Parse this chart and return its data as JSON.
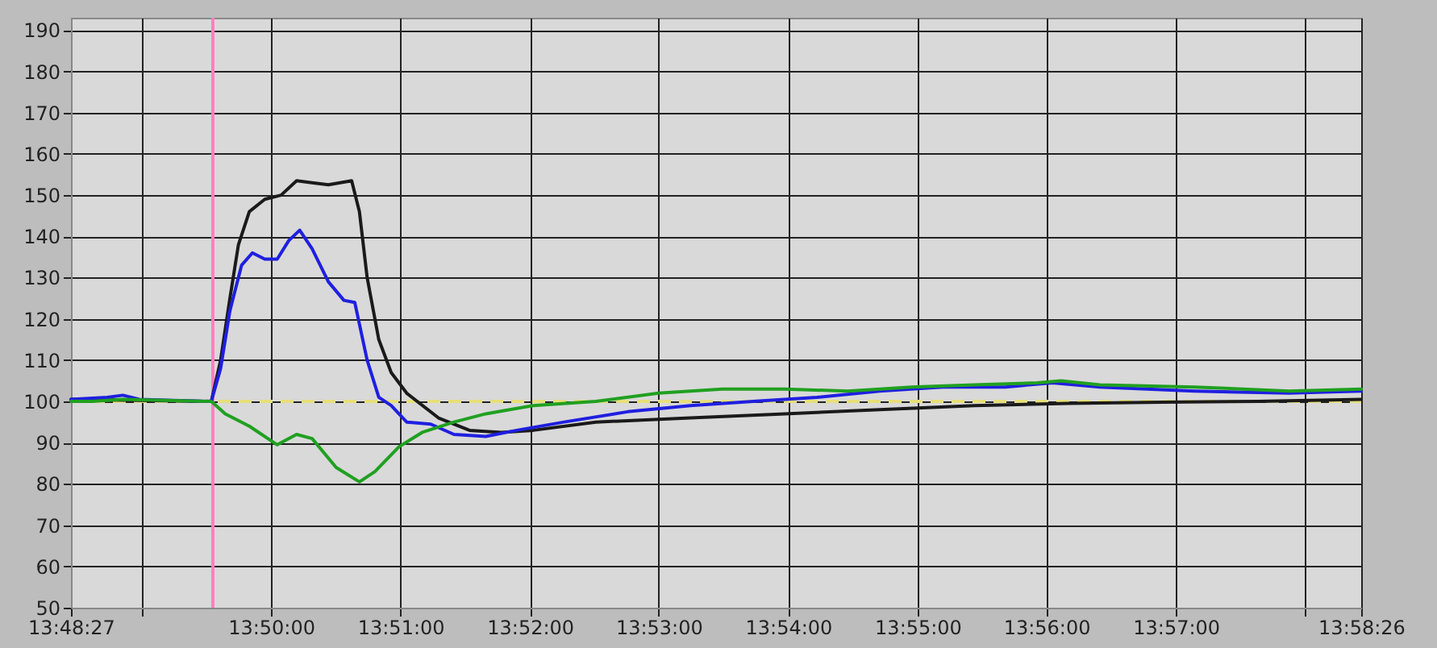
{
  "chart_data": {
    "type": "line",
    "xlim": [
      13.8075,
      13.9739
    ],
    "ylim": [
      50,
      193
    ],
    "xticks": [
      {
        "value": 13.8075,
        "label": "13:48:27"
      },
      {
        "value": 13.8167,
        "label": null
      },
      {
        "value": 13.8333,
        "label": "13:50:00"
      },
      {
        "value": 13.85,
        "label": "13:51:00"
      },
      {
        "value": 13.8667,
        "label": "13:52:00"
      },
      {
        "value": 13.8833,
        "label": "13:53:00"
      },
      {
        "value": 13.9,
        "label": "13:54:00"
      },
      {
        "value": 13.9167,
        "label": "13:55:00"
      },
      {
        "value": 13.9333,
        "label": "13:56:00"
      },
      {
        "value": 13.95,
        "label": "13:57:00"
      },
      {
        "value": 13.9667,
        "label": null
      },
      {
        "value": 13.9739,
        "label": "13:58:26"
      }
    ],
    "yticks": [
      50,
      60,
      70,
      80,
      90,
      100,
      110,
      120,
      130,
      140,
      150,
      160,
      170,
      180,
      190
    ],
    "grid": true,
    "line_style": "solid",
    "ref_lines": [
      {
        "axis": "y",
        "value": 100,
        "label": null,
        "color": "#e6df7a",
        "line_style": "dashed"
      },
      {
        "axis": "x",
        "value": 13.8258,
        "label": null,
        "color": "#ff7fbf",
        "line_style": "solid"
      }
    ],
    "series": [
      {
        "color": "#1a1a1a",
        "x": [
          13.8075,
          13.8256,
          13.8268,
          13.828,
          13.8291,
          13.8305,
          13.8325,
          13.8346,
          13.8366,
          13.8386,
          13.8407,
          13.8437,
          13.8447,
          13.8457,
          13.8472,
          13.8488,
          13.8508,
          13.8549,
          13.8589,
          13.863,
          13.8671,
          13.8752,
          13.8874,
          13.8996,
          13.9118,
          13.924,
          13.9362,
          13.9484,
          13.9606,
          13.9739
        ],
        "values": [
          100.5,
          100,
          110,
          125,
          138,
          146,
          149,
          150,
          153.5,
          153,
          152.5,
          153.5,
          146,
          130,
          115,
          107,
          102,
          96,
          93,
          92.5,
          93,
          95,
          96,
          97,
          98,
          99,
          99.5,
          99.8,
          100,
          100.5
        ]
      },
      {
        "color": "#1f1fe0",
        "x": [
          13.8075,
          13.8122,
          13.8142,
          13.8163,
          13.8256,
          13.8268,
          13.828,
          13.8295,
          13.8309,
          13.8325,
          13.8341,
          13.8356,
          13.837,
          13.8386,
          13.8407,
          13.8427,
          13.8441,
          13.8457,
          13.8472,
          13.8488,
          13.8508,
          13.8539,
          13.8569,
          13.861,
          13.865,
          13.8711,
          13.8793,
          13.8874,
          13.8955,
          13.9037,
          13.9118,
          13.9199,
          13.928,
          13.9341,
          13.9402,
          13.9524,
          13.9646,
          13.9739
        ],
        "values": [
          100.5,
          101,
          101.5,
          100.5,
          100,
          108,
          122,
          133,
          136,
          134.5,
          134.5,
          139,
          141.5,
          137,
          129,
          124.5,
          124,
          110,
          101,
          99,
          95,
          94.5,
          92,
          91.5,
          93,
          95,
          97.5,
          99,
          100,
          101,
          102.5,
          103.5,
          103.5,
          104.5,
          103.5,
          102.5,
          102,
          102.5
        ]
      },
      {
        "color": "#20a020",
        "x": [
          13.8075,
          13.8102,
          13.8142,
          13.8256,
          13.8274,
          13.8305,
          13.8341,
          13.8366,
          13.8386,
          13.8417,
          13.8447,
          13.8467,
          13.8498,
          13.8528,
          13.8569,
          13.861,
          13.8671,
          13.8752,
          13.8833,
          13.8915,
          13.8996,
          13.9077,
          13.9159,
          13.924,
          13.9321,
          13.9352,
          13.9402,
          13.9524,
          13.9646,
          13.9739
        ],
        "values": [
          100,
          100,
          100.5,
          100,
          97,
          94,
          89.5,
          92,
          91,
          84,
          80.5,
          83,
          89,
          92.5,
          95,
          97,
          99,
          100,
          102,
          103,
          103,
          102.5,
          103.5,
          104,
          104.5,
          105,
          104,
          103.5,
          102.5,
          103
        ]
      }
    ]
  }
}
